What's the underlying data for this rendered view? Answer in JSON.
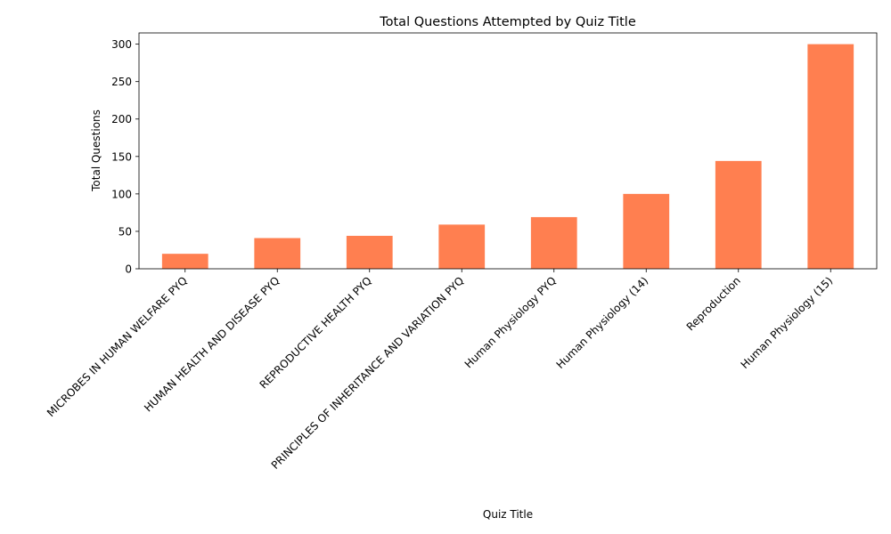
{
  "chart_data": {
    "type": "bar",
    "title": "Total Questions Attempted by Quiz Title",
    "xlabel": "Quiz Title",
    "ylabel": "Total Questions",
    "categories": [
      "MICROBES IN HUMAN WELFARE  PYQ",
      "HUMAN HEALTH AND DISEASE PYQ",
      "REPRODUCTIVE HEALTH PYQ",
      "PRINCIPLES OF INHERITANCE AND VARIATION PYQ",
      "Human Physiology PYQ",
      "Human Physiology (14)",
      "Reproduction",
      "Human Physiology (15)"
    ],
    "values": [
      20,
      41,
      44,
      59,
      69,
      100,
      144,
      300
    ],
    "ylim": [
      0,
      315
    ],
    "yticks": [
      0,
      50,
      100,
      150,
      200,
      250,
      300
    ],
    "bar_color": "#ff7f50",
    "grid": false,
    "legend": "none"
  }
}
